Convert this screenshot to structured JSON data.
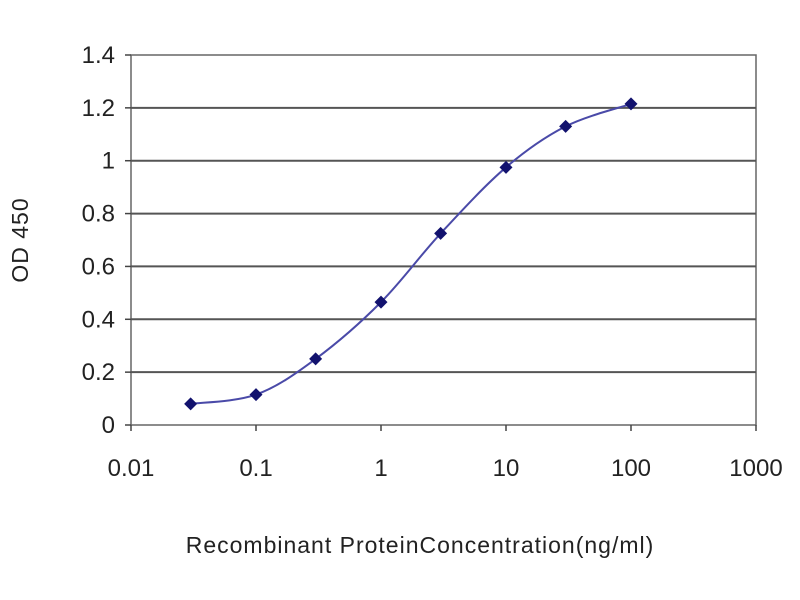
{
  "chart_data": {
    "type": "line",
    "title": "",
    "xlabel": "Recombinant ProteinConcentration(ng/ml)",
    "ylabel": "OD 450",
    "x_scale": "log",
    "xlim": [
      0.01,
      1000
    ],
    "ylim": [
      0,
      1.4
    ],
    "x_ticks": [
      "0.01",
      "0.1",
      "1",
      "10",
      "100",
      "1000"
    ],
    "y_ticks": [
      "0",
      "0.2",
      "0.4",
      "0.6",
      "0.8",
      "1",
      "1.2",
      "1.4"
    ],
    "grid": "horizontal",
    "legend": "none",
    "series": [
      {
        "x": [
          0.03,
          0.1,
          0.3,
          1,
          3,
          10,
          30,
          100
        ],
        "y": [
          0.08,
          0.115,
          0.25,
          0.465,
          0.725,
          0.975,
          1.13,
          1.215
        ]
      }
    ],
    "colors": {
      "line": "#4a4aa8",
      "marker": "#12126e",
      "grid": "#555555",
      "plot_bg": "#ffffff"
    }
  }
}
